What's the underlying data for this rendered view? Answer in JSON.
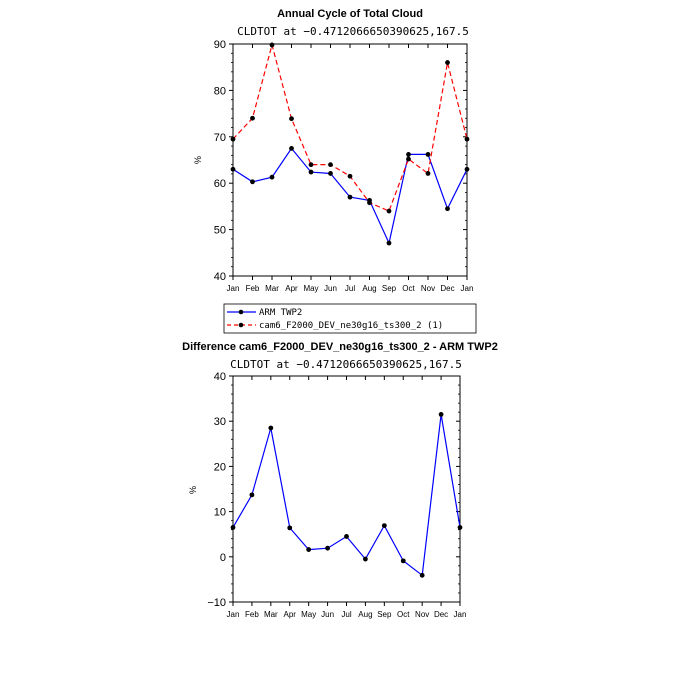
{
  "chart_data": [
    {
      "type": "line",
      "title": "Annual Cycle of Total Cloud",
      "subtitle": "CLDTOT at −0.4712066650390625,167.5",
      "xlabel": "",
      "ylabel": "%",
      "ylim": [
        40,
        90
      ],
      "yticks": [
        40,
        50,
        60,
        70,
        80,
        90
      ],
      "categories": [
        "Jan",
        "Feb",
        "Mar",
        "Apr",
        "May",
        "Jun",
        "Jul",
        "Aug",
        "Sep",
        "Oct",
        "Nov",
        "Dec",
        "Jan"
      ],
      "series": [
        {
          "name": "ARM TWP2",
          "color": "#0000ff",
          "dashed": false,
          "values": [
            63.0,
            60.3,
            61.3,
            67.5,
            62.4,
            62.1,
            57.0,
            56.3,
            47.1,
            66.2,
            66.2,
            54.5,
            63.0
          ]
        },
        {
          "name": "cam6_F2000_DEV_ne30g16_ts300_2 (1)",
          "color": "#ff0000",
          "dashed": true,
          "values": [
            69.5,
            74.0,
            89.8,
            73.9,
            64.0,
            64.0,
            61.5,
            55.8,
            54.0,
            65.2,
            62.1,
            86.0,
            69.5
          ]
        }
      ],
      "legend": "bottom"
    },
    {
      "type": "line",
      "title": "Difference cam6_F2000_DEV_ne30g16_ts300_2 - ARM TWP2",
      "subtitle": "CLDTOT at −0.4712066650390625,167.5",
      "xlabel": "",
      "ylabel": "%",
      "ylim": [
        -10,
        40
      ],
      "yticks": [
        -10,
        0,
        10,
        20,
        30,
        40
      ],
      "ytick_labels": [
        "−10",
        "0",
        "10",
        "20",
        "30",
        "40"
      ],
      "categories": [
        "Jan",
        "Feb",
        "Mar",
        "Apr",
        "May",
        "Jun",
        "Jul",
        "Aug",
        "Sep",
        "Oct",
        "Nov",
        "Dec",
        "Jan"
      ],
      "series": [
        {
          "name": "Difference",
          "color": "#0000ff",
          "dashed": false,
          "values": [
            6.5,
            13.7,
            28.5,
            6.4,
            1.6,
            1.9,
            4.5,
            -0.5,
            6.9,
            -0.9,
            -4.1,
            31.5,
            6.5
          ]
        }
      ]
    }
  ]
}
